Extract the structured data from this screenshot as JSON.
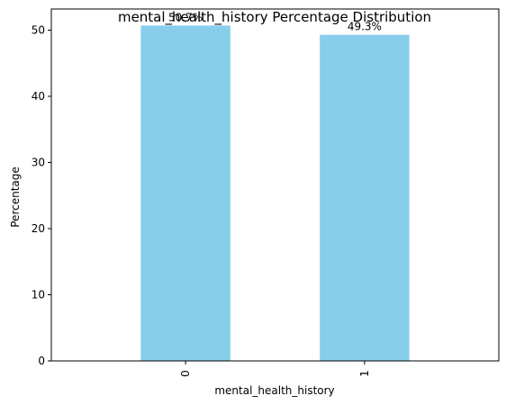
{
  "chart_data": {
    "type": "bar",
    "title": "mental_health_history Percentage Distribution",
    "xlabel": "mental_health_history",
    "ylabel": "Percentage",
    "categories": [
      "0",
      "1"
    ],
    "values": [
      50.7,
      49.3
    ],
    "data_labels": [
      "50.7%",
      "49.3%"
    ],
    "yticks": [
      0,
      10,
      20,
      30,
      40,
      50
    ],
    "ylim": [
      0,
      53.2
    ],
    "bar_color": "#87CEEB",
    "grid": false,
    "legend": "none"
  }
}
